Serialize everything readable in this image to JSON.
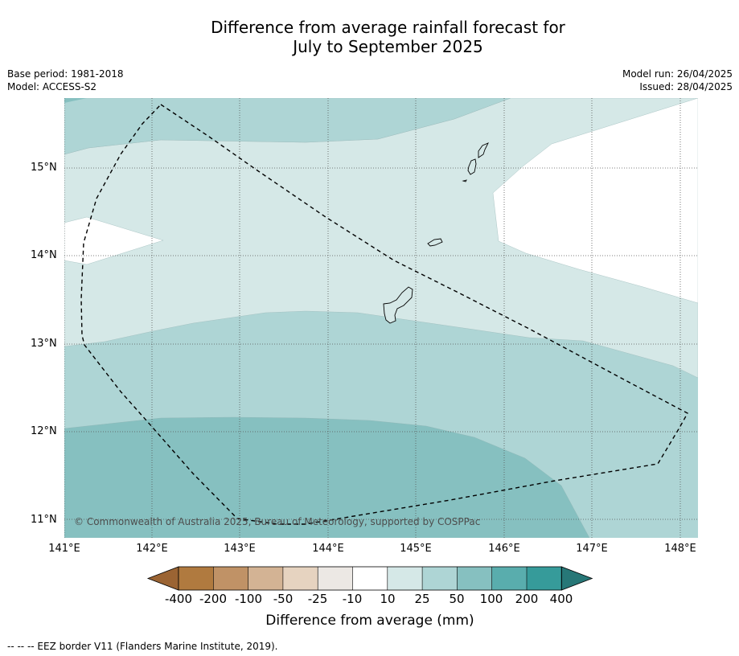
{
  "title_line1": "Difference from average rainfall forecast for",
  "title_line2": "July to September 2025",
  "base_period": "Base period: 1981-2018",
  "model": "Model: ACCESS-S2",
  "model_run": "Model run: 26/04/2025",
  "issued": "Issued: 28/04/2025",
  "copyright": "© Commonwealth of Australia 2025, Bureau of Meteorology, supported by COSPPac",
  "lat_labels": [
    "15°N",
    "14°N",
    "13°N",
    "12°N",
    "11°N"
  ],
  "lon_labels": [
    "141°E",
    "142°E",
    "143°E",
    "144°E",
    "145°E",
    "146°E",
    "147°E",
    "148°E"
  ],
  "colorbar": {
    "labels": [
      "-400",
      "-200",
      "-100",
      "-50",
      "-25",
      "-10",
      "10",
      "25",
      "50",
      "100",
      "200",
      "400"
    ],
    "colors": [
      "#9b6433",
      "#b07a3f",
      "#c09266",
      "#d3b394",
      "#e6d3c0",
      "#ece8e4",
      "#ffffff",
      "#d5e8e7",
      "#aed5d5",
      "#86c0c0",
      "#59adad",
      "#369b9a",
      "#277777"
    ],
    "title": "Difference from average (mm)"
  },
  "footnote": "--  --  -- EEZ border V11 (Flanders Marine Institute, 2019)."
}
